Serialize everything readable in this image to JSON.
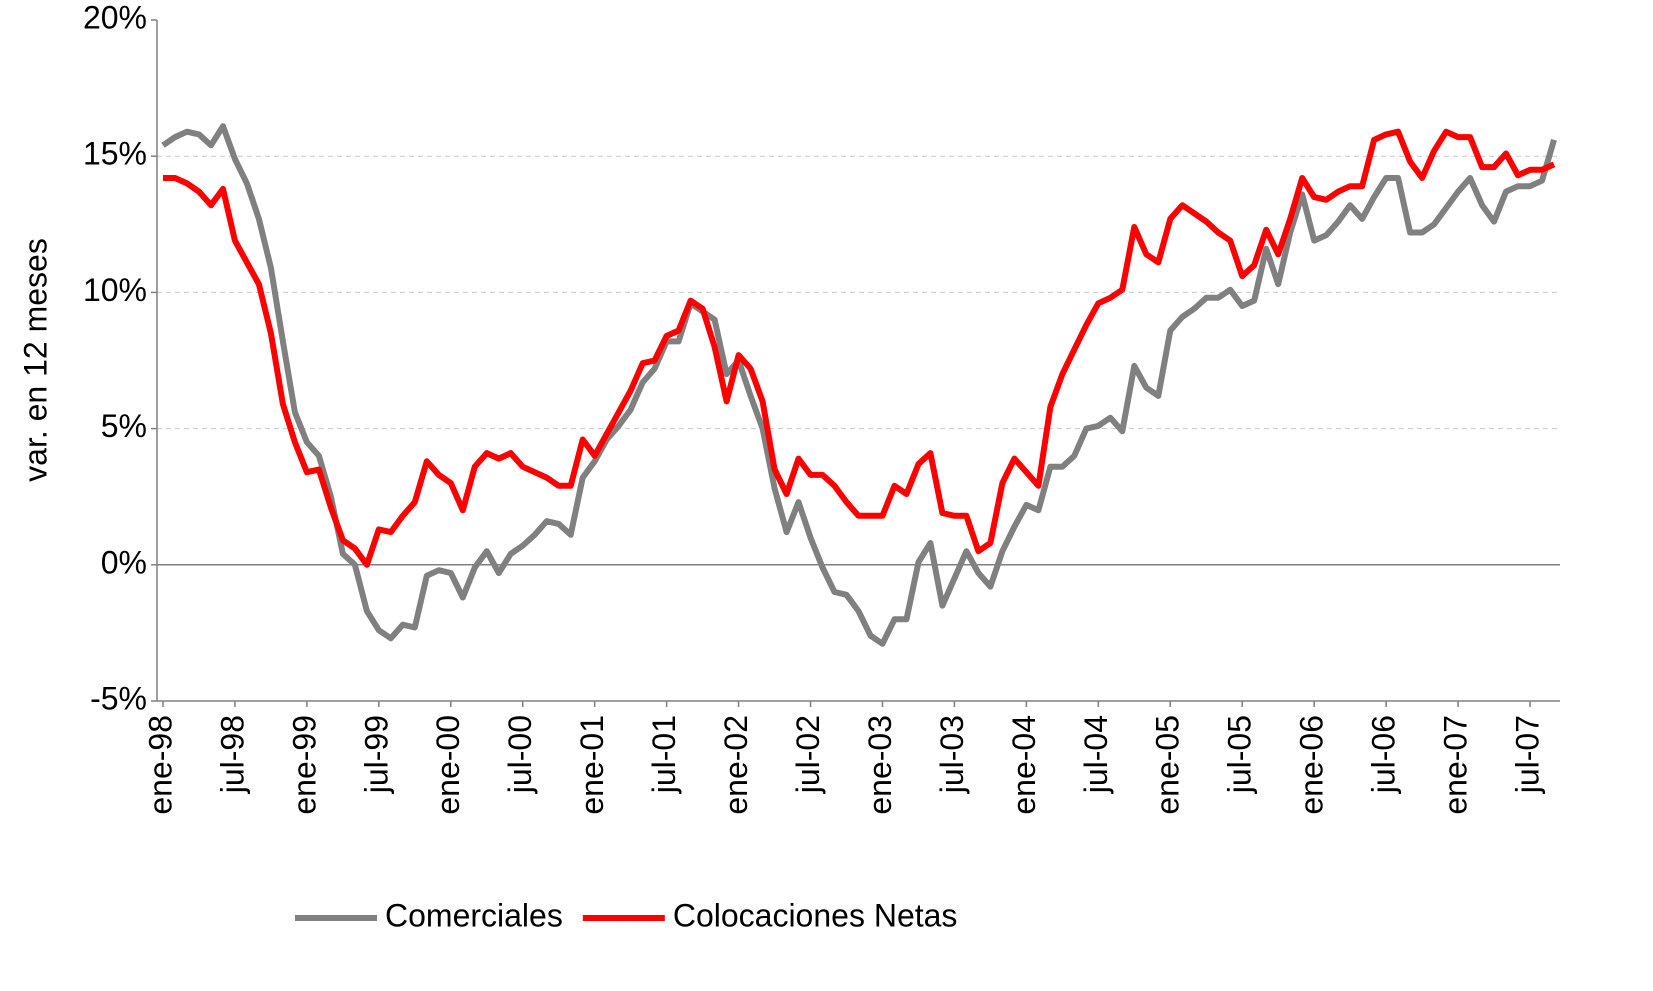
{
  "chart_data": {
    "type": "line",
    "y_label": "var. en 12 meses",
    "categories": [
      "ene-98",
      null,
      null,
      null,
      null,
      null,
      "jul-98",
      null,
      null,
      null,
      null,
      null,
      "ene-99",
      null,
      null,
      null,
      null,
      null,
      "jul-99",
      null,
      null,
      null,
      null,
      null,
      "ene-00",
      null,
      null,
      null,
      null,
      null,
      "jul-00",
      null,
      null,
      null,
      null,
      null,
      "ene-01",
      null,
      null,
      null,
      null,
      null,
      "jul-01",
      null,
      null,
      null,
      null,
      null,
      "ene-02",
      null,
      null,
      null,
      null,
      null,
      "jul-02",
      null,
      null,
      null,
      null,
      null,
      "ene-03",
      null,
      null,
      null,
      null,
      null,
      "jul-03",
      null,
      null,
      null,
      null,
      null,
      "ene-04",
      null,
      null,
      null,
      null,
      null,
      "jul-04",
      null,
      null,
      null,
      null,
      null,
      "ene-05",
      null,
      null,
      null,
      null,
      null,
      "jul-05",
      null,
      null,
      null,
      null,
      null,
      "ene-06",
      null,
      null,
      null,
      null,
      null,
      "jul-06",
      null,
      null,
      null,
      null,
      null,
      "ene-07",
      null,
      null,
      null,
      null,
      null,
      "jul-07",
      null,
      null
    ],
    "series": [
      {
        "name": "Comerciales",
        "color": "#808080",
        "values": [
          15.4,
          15.7,
          15.9,
          15.8,
          15.4,
          16.1,
          14.9,
          14.0,
          12.7,
          10.9,
          8.2,
          5.6,
          4.5,
          4.0,
          2.5,
          0.4,
          0.0,
          -1.7,
          -2.4,
          -2.7,
          -2.2,
          -2.3,
          -0.4,
          -0.2,
          -0.3,
          -1.2,
          -0.1,
          0.5,
          -0.3,
          0.4,
          0.7,
          1.1,
          1.6,
          1.5,
          1.1,
          3.2,
          3.8,
          4.6,
          5.1,
          5.7,
          6.7,
          7.2,
          8.2,
          8.2,
          9.6,
          9.3,
          9.0,
          7.0,
          7.5,
          6.2,
          5.0,
          2.8,
          1.2,
          2.3,
          1.0,
          -0.1,
          -1.0,
          -1.1,
          -1.7,
          -2.6,
          -2.9,
          -2.0,
          -2.0,
          0.1,
          0.8,
          -1.5,
          -0.5,
          0.5,
          -0.3,
          -0.8,
          0.5,
          1.4,
          2.2,
          2.0,
          3.6,
          3.6,
          4.0,
          5.0,
          5.1,
          5.4,
          4.9,
          7.3,
          6.5,
          6.2,
          8.6,
          9.1,
          9.4,
          9.8,
          9.8,
          10.1,
          9.5,
          9.7,
          11.6,
          10.3,
          12.2,
          13.6,
          11.9,
          12.1,
          12.6,
          13.2,
          12.7,
          13.5,
          14.2,
          14.2,
          12.2,
          12.2,
          12.5,
          13.1,
          13.7,
          14.2,
          13.2,
          12.6,
          13.7,
          13.9,
          13.9,
          14.1,
          15.6
        ]
      },
      {
        "name": "Colocaciones Netas",
        "color": "#ff0000",
        "values": [
          14.2,
          14.2,
          14.0,
          13.7,
          13.2,
          13.8,
          11.9,
          11.1,
          10.3,
          8.5,
          5.9,
          4.5,
          3.4,
          3.5,
          2.1,
          0.9,
          0.6,
          0.0,
          1.3,
          1.2,
          1.8,
          2.3,
          3.8,
          3.3,
          3.0,
          2.0,
          3.6,
          4.1,
          3.9,
          4.1,
          3.6,
          3.4,
          3.2,
          2.9,
          2.9,
          4.6,
          4.0,
          4.8,
          5.6,
          6.4,
          7.4,
          7.5,
          8.4,
          8.6,
          9.7,
          9.4,
          8.0,
          6.0,
          7.7,
          7.2,
          6.0,
          3.5,
          2.6,
          3.9,
          3.3,
          3.3,
          2.9,
          2.3,
          1.8,
          1.8,
          1.8,
          2.9,
          2.6,
          3.7,
          4.1,
          1.9,
          1.8,
          1.8,
          0.5,
          0.8,
          3.0,
          3.9,
          3.4,
          2.9,
          5.8,
          7.0,
          7.9,
          8.8,
          9.6,
          9.8,
          10.1,
          12.4,
          11.4,
          11.1,
          12.7,
          13.2,
          12.9,
          12.6,
          12.2,
          11.9,
          10.6,
          11.0,
          12.3,
          11.4,
          12.7,
          14.2,
          13.5,
          13.4,
          13.7,
          13.9,
          13.9,
          15.6,
          15.8,
          15.9,
          14.8,
          14.2,
          15.2,
          15.9,
          15.7,
          15.7,
          14.6,
          14.6,
          15.1,
          14.3,
          14.5,
          14.5,
          14.7
        ]
      }
    ],
    "ylim": [
      -5,
      20
    ],
    "yticks": [
      {
        "value": -5,
        "label": "-5%"
      },
      {
        "value": 0,
        "label": "0%"
      },
      {
        "value": 5,
        "label": "5%"
      },
      {
        "value": 10,
        "label": "10%"
      },
      {
        "value": 15,
        "label": "15%"
      },
      {
        "value": 20,
        "label": "20%"
      }
    ],
    "grid": true,
    "legend": "bottom"
  }
}
